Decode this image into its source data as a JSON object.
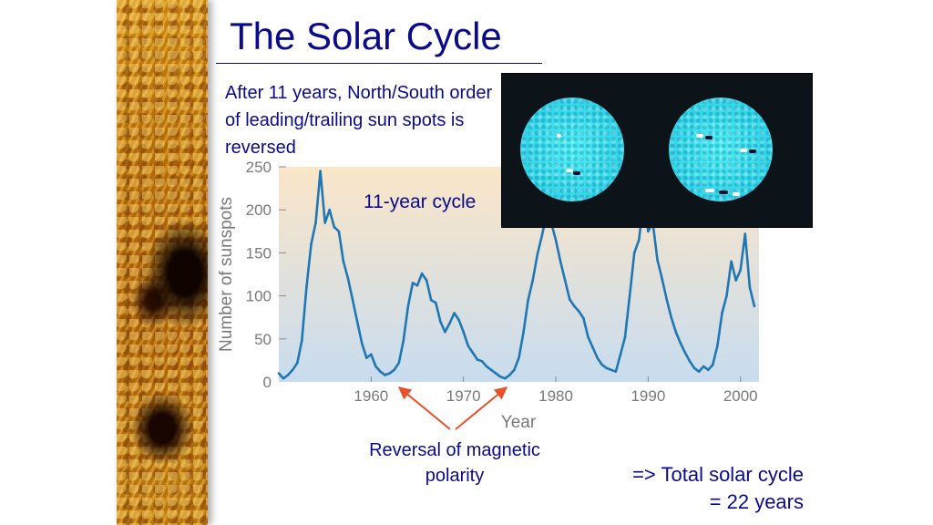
{
  "slide": {
    "title": "The Solar Cycle",
    "caption_top": "After 11 years, North/South order of leading/trailing sun spots is reversed",
    "cycle_label": "11-year cycle",
    "caption_reversal": "Reversal of magnetic polarity",
    "caption_total_line1": "=> Total solar cycle",
    "caption_total_line2": "= 22 years"
  },
  "colors": {
    "title": "#0a0a8c",
    "series": "#1f77b4",
    "arrow": "#e8502a",
    "plot_bg_top": "#fbe6c8",
    "plot_bg_bottom": "#c8dcef"
  },
  "chart_data": {
    "type": "line",
    "xlabel": "Year",
    "ylabel": "Number of sunspots",
    "xlim": [
      1950,
      2002
    ],
    "ylim": [
      0,
      250
    ],
    "xticks": [
      1960,
      1970,
      1980,
      1990,
      2000
    ],
    "yticks": [
      0,
      50,
      100,
      150,
      200,
      250
    ],
    "series": [
      {
        "x": [
          1950,
          1950.5,
          1951,
          1951.5,
          1952,
          1952.5,
          1953,
          1953.5,
          1954,
          1954.5,
          1955,
          1955.5,
          1956,
          1956.5,
          1957,
          1957.5,
          1958,
          1958.5,
          1959,
          1959.5,
          1960,
          1960.5,
          1961,
          1961.5,
          1962,
          1962.5,
          1963,
          1963.5,
          1964,
          1964.5,
          1965,
          1965.5,
          1966,
          1966.5,
          1967,
          1967.5,
          1968,
          1968.5,
          1969,
          1969.5,
          1970,
          1970.5,
          1971,
          1971.5,
          1972,
          1972.5,
          1973,
          1973.5,
          1974,
          1974.5,
          1975,
          1975.5,
          1976,
          1976.5,
          1977,
          1977.5,
          1978,
          1978.5,
          1979,
          1979.5,
          1980,
          1980.5,
          1981,
          1981.5,
          1982,
          1982.5,
          1983,
          1983.5,
          1984,
          1984.5,
          1985,
          1985.5,
          1986,
          1986.5,
          1987,
          1987.5,
          1988,
          1988.5,
          1989,
          1989.5,
          1990,
          1990.5,
          1991,
          1991.5,
          1992,
          1992.5,
          1993,
          1993.5,
          1994,
          1994.5,
          1995,
          1995.5,
          1996,
          1996.5,
          1997,
          1997.5,
          1998,
          1998.5,
          1999,
          1999.5,
          2000,
          2000.5,
          2001,
          2001.5
        ],
        "y": [
          10,
          4,
          8,
          14,
          22,
          48,
          110,
          160,
          185,
          245,
          185,
          200,
          180,
          175,
          140,
          120,
          95,
          70,
          45,
          28,
          32,
          18,
          12,
          8,
          10,
          14,
          22,
          48,
          88,
          115,
          112,
          126,
          118,
          95,
          92,
          70,
          58,
          68,
          80,
          72,
          58,
          42,
          34,
          26,
          24,
          18,
          14,
          10,
          6,
          4,
          8,
          14,
          28,
          58,
          95,
          118,
          148,
          170,
          195,
          185,
          165,
          140,
          118,
          96,
          88,
          82,
          74,
          52,
          40,
          28,
          20,
          16,
          14,
          12,
          32,
          52,
          100,
          150,
          165,
          210,
          175,
          185,
          142,
          120,
          96,
          75,
          58,
          45,
          34,
          24,
          16,
          12,
          18,
          14,
          20,
          42,
          80,
          100,
          140,
          118,
          130,
          172,
          110,
          88
        ]
      }
    ]
  }
}
